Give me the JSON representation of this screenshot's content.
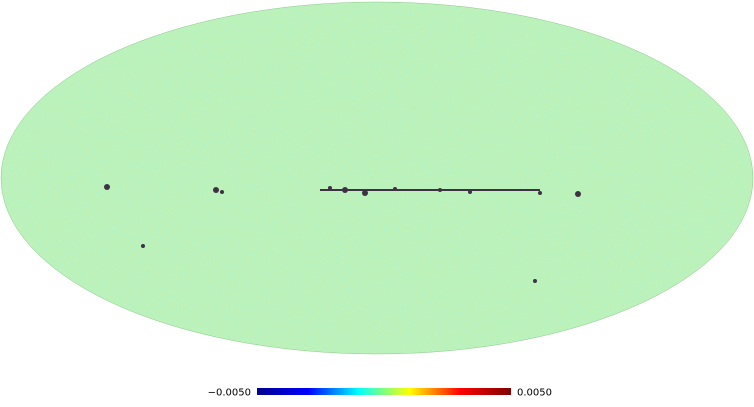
{
  "colorbar": {
    "lim": [
      -0.005,
      0.005
    ],
    "ticks": [
      {
        "value": -0.005,
        "label": "−0.0050"
      },
      {
        "value": 0.005,
        "label": "0.0050"
      }
    ],
    "colors": [
      "#00008f",
      "#0000ff",
      "#00ffff",
      "#ffff00",
      "#ff0000",
      "#800000"
    ]
  }
}
